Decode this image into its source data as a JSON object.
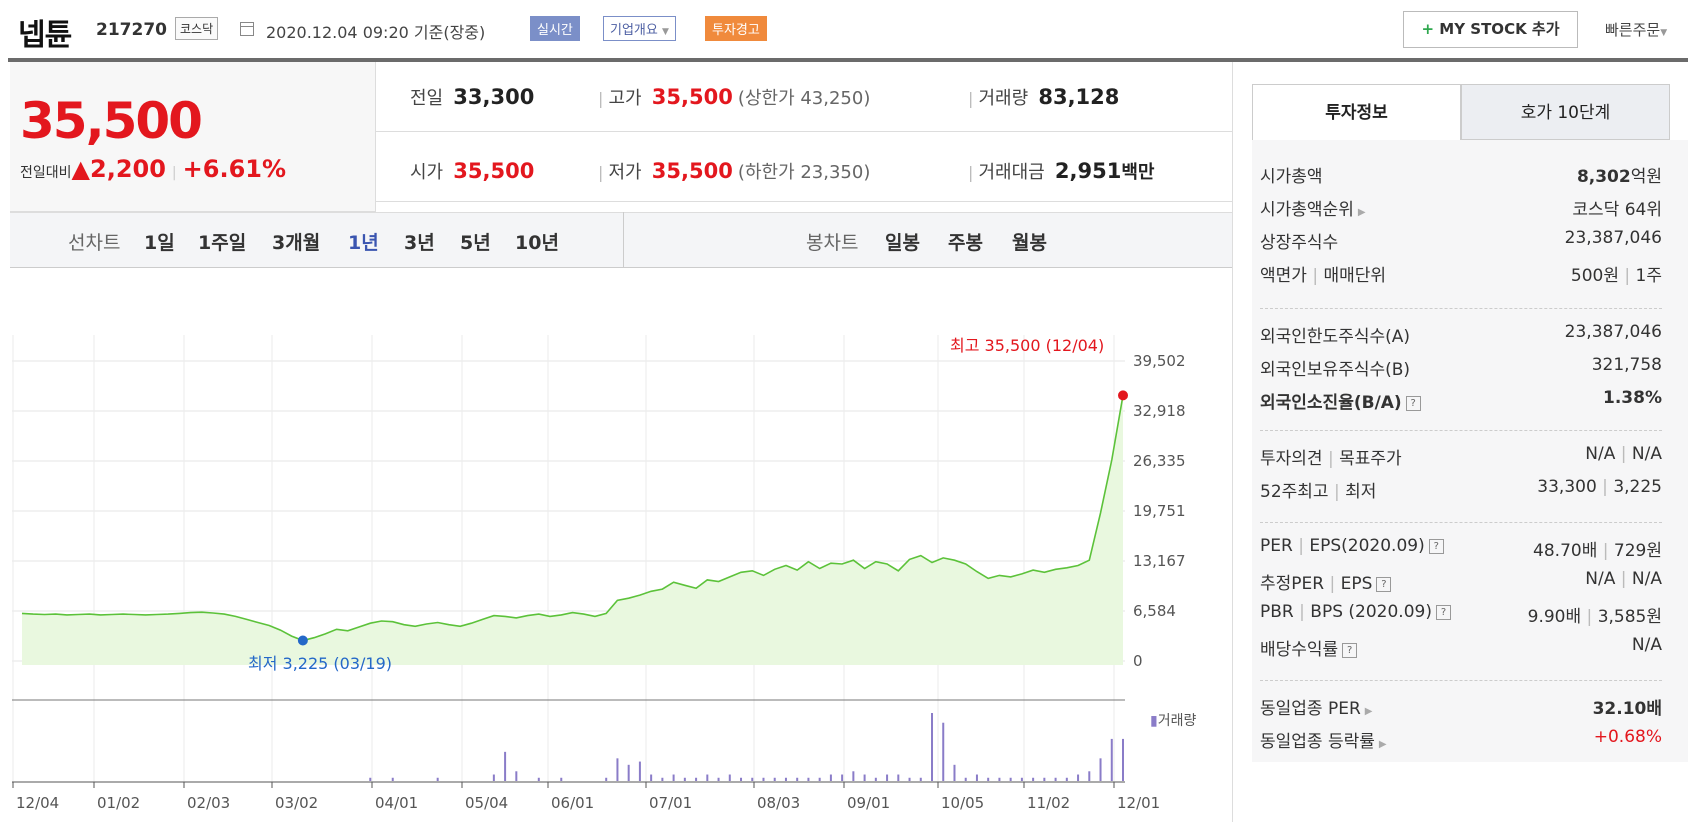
{
  "header": {
    "name": "넵튠",
    "code": "217270",
    "market": "코스닥",
    "datetime": "2020.12.04 09:20",
    "basis": "기준(장중)",
    "realtime": "실시간",
    "company_info": "기업개요",
    "warning": "투자경고",
    "mystock": "MY STOCK 추가",
    "quick_order": "빠른주문"
  },
  "price": {
    "current": "35,500",
    "change_label": "전일대비",
    "change": "2,200",
    "change_pct": "+6.61%"
  },
  "info": {
    "prev_label": "전일",
    "prev": "33,300",
    "high_label": "고가",
    "high": "35,500",
    "upper_limit": "(상한가 43,250)",
    "volume_label": "거래량",
    "volume": "83,128",
    "open_label": "시가",
    "open": "35,500",
    "low_label": "저가",
    "low": "35,500",
    "lower_limit": "(하한가 23,350)",
    "amount_label": "거래대금",
    "amount": "2,951",
    "amount_unit": "백만"
  },
  "tabs": {
    "line_label": "선차트",
    "line": [
      "1일",
      "1주일",
      "3개월",
      "1년",
      "3년",
      "5년",
      "10년"
    ],
    "candle_label": "봉차트",
    "candle": [
      "일봉",
      "주봉",
      "월봉"
    ]
  },
  "chart_data": {
    "type": "area",
    "x_tick_labels": [
      "12/04",
      "01/02",
      "02/03",
      "03/02",
      "04/01",
      "05/04",
      "06/01",
      "07/01",
      "08/03",
      "09/01",
      "10/05",
      "11/02",
      "12/01"
    ],
    "y_tick_labels": [
      "39,502",
      "32,918",
      "26,335",
      "19,751",
      "13,167",
      "6,584",
      "0"
    ],
    "ylim": [
      0,
      39502
    ],
    "series": [
      {
        "values": [
          6800,
          6700,
          6650,
          6700,
          6600,
          6650,
          6700,
          6600,
          6650,
          6700,
          6650,
          6600,
          6650,
          6700,
          6800,
          6900,
          6950,
          6850,
          6700,
          6400,
          6000,
          5600,
          5200,
          4600,
          3800,
          3225,
          3600,
          4100,
          4700,
          4500,
          5000,
          5500,
          5800,
          5700,
          5300,
          5100,
          5400,
          5600,
          5300,
          5100,
          5500,
          6000,
          6500,
          6400,
          6200,
          6500,
          6700,
          6400,
          6600,
          6900,
          6700,
          6400,
          6800,
          8500,
          8800,
          9200,
          9700,
          10000,
          10900,
          10500,
          10100,
          11200,
          11000,
          11600,
          12200,
          12400,
          11800,
          12600,
          13100,
          12500,
          13600,
          12700,
          13400,
          13300,
          13800,
          12700,
          13600,
          13300,
          12400,
          13900,
          14400,
          13500,
          14100,
          13800,
          13300,
          12300,
          11400,
          11800,
          11600,
          12000,
          12500,
          12200,
          12600,
          12800,
          13100,
          13800,
          20000,
          27000,
          35500
        ]
      }
    ],
    "high_label": "최고 35,500 (12/04)",
    "low_label": "최저 3,225 (03/19)",
    "volume_legend": "거래량",
    "volume_values": [
      0,
      0,
      0,
      0,
      0,
      0,
      0,
      0,
      0,
      0,
      0,
      0,
      0,
      0,
      0,
      0,
      0,
      0,
      0,
      0,
      0,
      0,
      0,
      0,
      0,
      0,
      0,
      0,
      0,
      0,
      0,
      1,
      0,
      1,
      0,
      0,
      0,
      1,
      0,
      0,
      0,
      0,
      2,
      9,
      3,
      0,
      1,
      0,
      1,
      0,
      0,
      0,
      1,
      7,
      5,
      6,
      2,
      1,
      2,
      1,
      1,
      2,
      1,
      2,
      1,
      1,
      1,
      1,
      1,
      1,
      1,
      1,
      2,
      2,
      3,
      2,
      1,
      2,
      2,
      1,
      1,
      21,
      18,
      5,
      1,
      2,
      1,
      1,
      1,
      1,
      1,
      1,
      1,
      1,
      2,
      3,
      7,
      13,
      13
    ]
  },
  "sidebar": {
    "tab_invest": "투자정보",
    "tab_order": "호가 10단계",
    "g1": [
      {
        "k": "시가총액",
        "v": "8,302",
        "u": "억원"
      },
      {
        "k": "시가총액순위",
        "v": "코스닥 64위"
      },
      {
        "k": "상장주식수",
        "v": "23,387,046"
      },
      {
        "k": "액면가",
        "k2": "매매단위",
        "v": "500원",
        "v2": "1주"
      }
    ],
    "g2": [
      {
        "k": "외국인한도주식수(A)",
        "v": "23,387,046"
      },
      {
        "k": "외국인보유주식수(B)",
        "v": "321,758"
      },
      {
        "k": "외국인소진율(B/A)",
        "v": "1.38%"
      }
    ],
    "g3": [
      {
        "k": "투자의견",
        "k2": "목표주가",
        "v": "N/A",
        "v2": "N/A"
      },
      {
        "k": "52주최고",
        "k2": "최저",
        "v": "33,300",
        "v2": "3,225"
      }
    ],
    "g4": [
      {
        "k": "PER",
        "k2": "EPS(2020.09)",
        "v": "48.70배",
        "v2": "729원"
      },
      {
        "k": "추정PER",
        "k2": "EPS",
        "v": "N/A",
        "v2": "N/A"
      },
      {
        "k": "PBR",
        "k2": "BPS (2020.09)",
        "v": "9.90배",
        "v2": "3,585원"
      },
      {
        "k": "배당수익률",
        "v": "N/A"
      }
    ],
    "g5": [
      {
        "k": "동일업종 PER",
        "v": "32.10배"
      },
      {
        "k": "동일업종 등락률",
        "v": "+0.68%"
      }
    ]
  },
  "colors": {
    "up": "#e3171e",
    "down": "#2468c8",
    "line": "#5cc23a",
    "fill": "#e9f8df"
  }
}
